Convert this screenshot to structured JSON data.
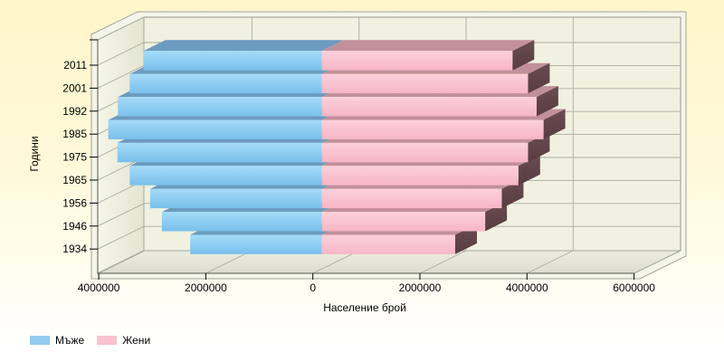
{
  "chart_data": {
    "type": "bar",
    "variant": "3d-horizontal-population-pyramid",
    "title": "",
    "categories": [
      "2011",
      "2001",
      "1992",
      "1985",
      "1975",
      "1965",
      "1956",
      "1946",
      "1934"
    ],
    "series": [
      {
        "name": "Мъже",
        "side": "left",
        "color": "#85C9F0",
        "top_color": "#6B9BBF",
        "values": [
          3330000,
          3590000,
          3810000,
          3990000,
          3820000,
          3590000,
          3210000,
          2990000,
          2460000
        ]
      },
      {
        "name": "Жени",
        "side": "right",
        "color": "#FAC4D1",
        "top_color": "#C2909A",
        "side_color": "#5E4245",
        "values": [
          3560000,
          3850000,
          4010000,
          4140000,
          3850000,
          3670000,
          3360000,
          3050000,
          2490000
        ]
      }
    ],
    "xlabel": "Население брой",
    "ylabel": "Години",
    "x_tick_values": [
      -4000000,
      -2000000,
      0,
      2000000,
      4000000,
      6000000
    ],
    "x_tick_labels": [
      "4000000",
      "2000000",
      "0",
      "2000000",
      "4000000",
      "6000000"
    ],
    "xlim": [
      -4050000,
      6050000
    ],
    "grid": true,
    "legend_position": "bottom-left",
    "colors": {
      "wall": "#F0F1E0",
      "left_wall": "#ECEDDC",
      "floor": "#E2E3D5",
      "grid_line": "#ABACA0",
      "frame": "#F4F5E9",
      "frame_border": "#A2A397",
      "text": "#000000",
      "background_top": "#FFF6CC",
      "background_bottom": "#FFFFFF"
    }
  }
}
